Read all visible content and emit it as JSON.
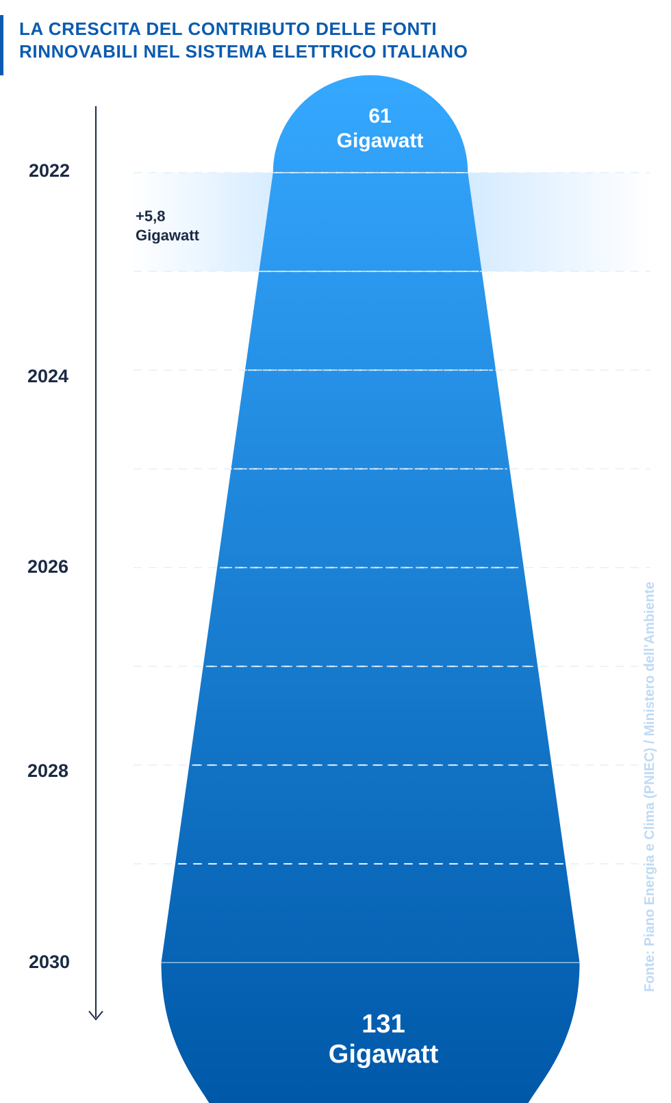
{
  "header": {
    "title_line1": "LA CRESCITA DEL CONTRIBUTO DELLE FONTI",
    "title_line2": "RINNOVABILI NEL SISTEMA ELETTRICO ITALIANO"
  },
  "source": "Fonte: Piano Energia e Clima (PNIEC) / Ministero dell’Ambiente",
  "chart_data": {
    "type": "area",
    "orientation": "vertical-funnel",
    "unit": "Gigawatt",
    "years": [
      "2022",
      "2024",
      "2026",
      "2028",
      "2030"
    ],
    "start": {
      "year": "2022",
      "value": 61,
      "value_label": "61",
      "unit_label": "Gigawatt"
    },
    "end": {
      "year": "2030",
      "value": 131,
      "value_label": "131",
      "unit_label": "Gigawatt"
    },
    "annual_increase": {
      "value_label": "+5,8",
      "unit_label": "Gigawatt",
      "highlighted_year": "2022"
    },
    "grid": "dashed horizontal lines per year",
    "colors": {
      "title": "#0a5bb0",
      "top_fill": "#35a8ff",
      "bottom_fill": "#0058a8",
      "highlight_band": "#bde0ff",
      "source_text": "#bfdaf5"
    }
  }
}
